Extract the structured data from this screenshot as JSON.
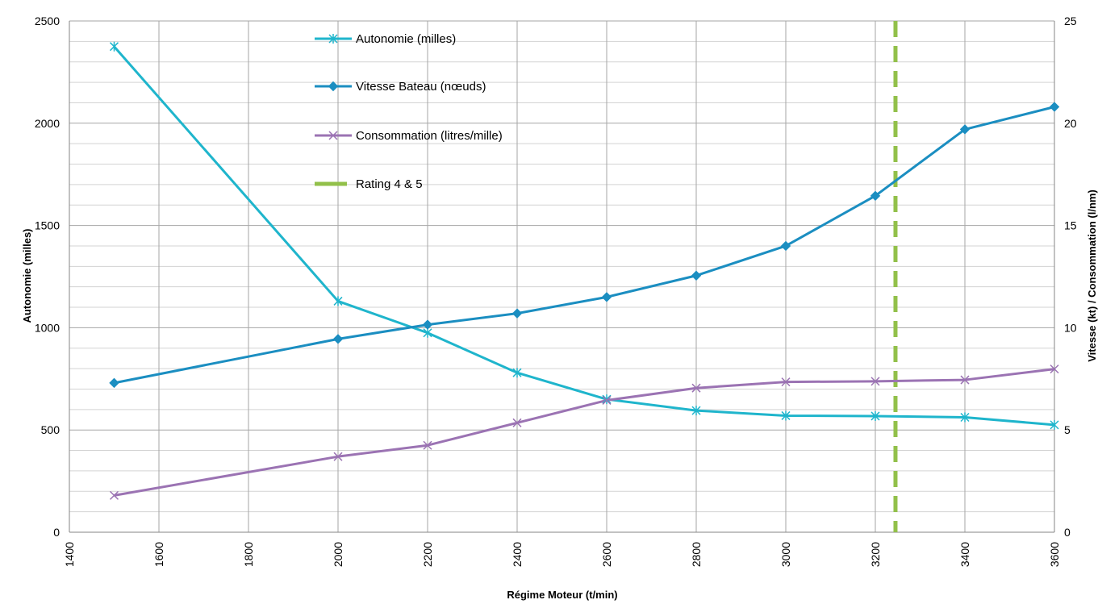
{
  "chart_data": {
    "type": "line",
    "xlabel": "Régime Moteur (t/min)",
    "ylabel_left": "Autonomie (milles)",
    "ylabel_right": "Vitesse (kt) / Consommation (l/nm)",
    "xlim": [
      1400,
      3600
    ],
    "ylim_left": [
      0,
      2500
    ],
    "ylim_right": [
      0,
      25
    ],
    "x_ticks": [
      "1400",
      "1600",
      "1800",
      "2000",
      "2200",
      "2400",
      "2600",
      "2800",
      "3000",
      "3200",
      "3400",
      "3600"
    ],
    "y_left_ticks": [
      "0",
      "500",
      "1000",
      "1500",
      "2000",
      "2500"
    ],
    "y_right_ticks": [
      "0",
      "5",
      "10",
      "15",
      "20",
      "25"
    ],
    "grid": true,
    "legend_position": "top-center",
    "x": [
      1500,
      2000,
      2200,
      2400,
      2600,
      2800,
      3000,
      3200,
      3400,
      3600
    ],
    "series": [
      {
        "name": "Autonomie (milles)",
        "axis": "left",
        "marker": "asterisk",
        "color": "#1fb5cc",
        "values": [
          2375,
          1130,
          975,
          780,
          650,
          595,
          570,
          568,
          562,
          525
        ]
      },
      {
        "name": "Vitesse Bateau (nœuds)",
        "axis": "right",
        "marker": "diamond",
        "color": "#1b8ec1",
        "values": [
          7.3,
          9.45,
          10.15,
          10.7,
          11.5,
          12.55,
          14.0,
          16.45,
          19.7,
          20.8
        ]
      },
      {
        "name": "Consommation (litres/mille)",
        "axis": "right",
        "marker": "x",
        "color": "#9b73b3",
        "values": [
          1.8,
          3.7,
          4.25,
          5.35,
          6.45,
          7.05,
          7.35,
          7.38,
          7.45,
          7.98
        ]
      }
    ],
    "reference_lines": [
      {
        "name": "Rating 4 & 5",
        "x": 3245,
        "color": "#92c04a",
        "style": "dashed"
      }
    ]
  }
}
